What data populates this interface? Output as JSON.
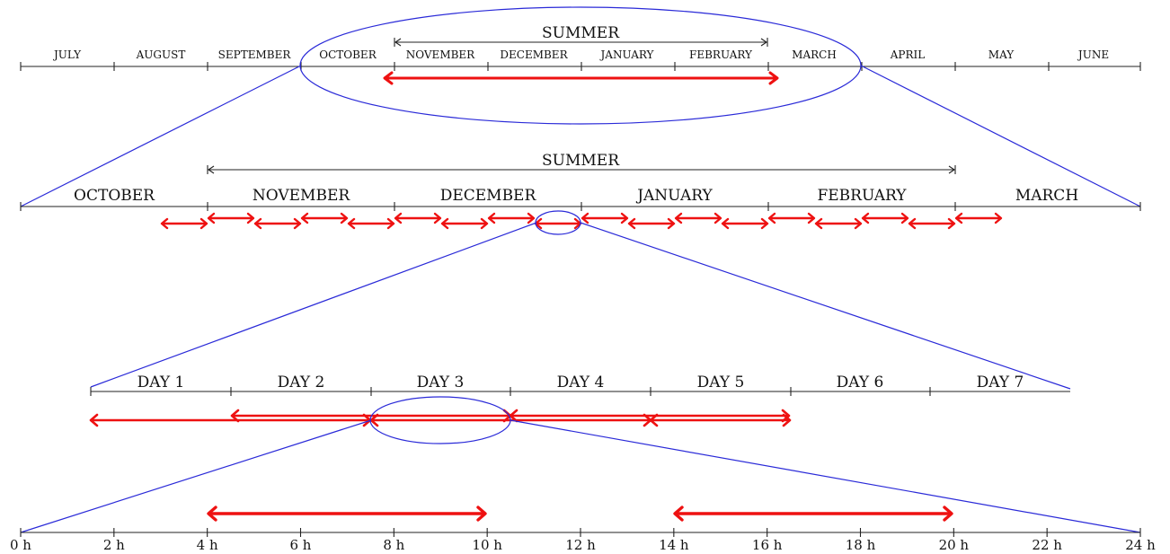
{
  "colors": {
    "axis": "#222222",
    "zoom": "#2a2ad8",
    "arrow": "#ee1111",
    "background": "#ffffff"
  },
  "row1": {
    "months": [
      "JULY",
      "AUGUST",
      "SEPTEMBER",
      "OCTOBER",
      "NOVEMBER",
      "DECEMBER",
      "JANUARY",
      "FEBRUARY",
      "MARCH",
      "APRIL",
      "MAY",
      "JUNE"
    ],
    "summer_label": "SUMMER"
  },
  "row2": {
    "months": [
      "OCTOBER",
      "NOVEMBER",
      "DECEMBER",
      "JANUARY",
      "FEBRUARY",
      "MARCH"
    ],
    "summer_label": "SUMMER"
  },
  "row3": {
    "days": [
      "DAY 1",
      "DAY 2",
      "DAY 3",
      "DAY 4",
      "DAY 5",
      "DAY 6",
      "DAY 7"
    ]
  },
  "row4": {
    "ticks": [
      "0 h",
      "2 h",
      "4 h",
      "6 h",
      "8 h",
      "10 h",
      "12 h",
      "14 h",
      "16 h",
      "18 h",
      "20 h",
      "22 h",
      "24 h"
    ]
  }
}
